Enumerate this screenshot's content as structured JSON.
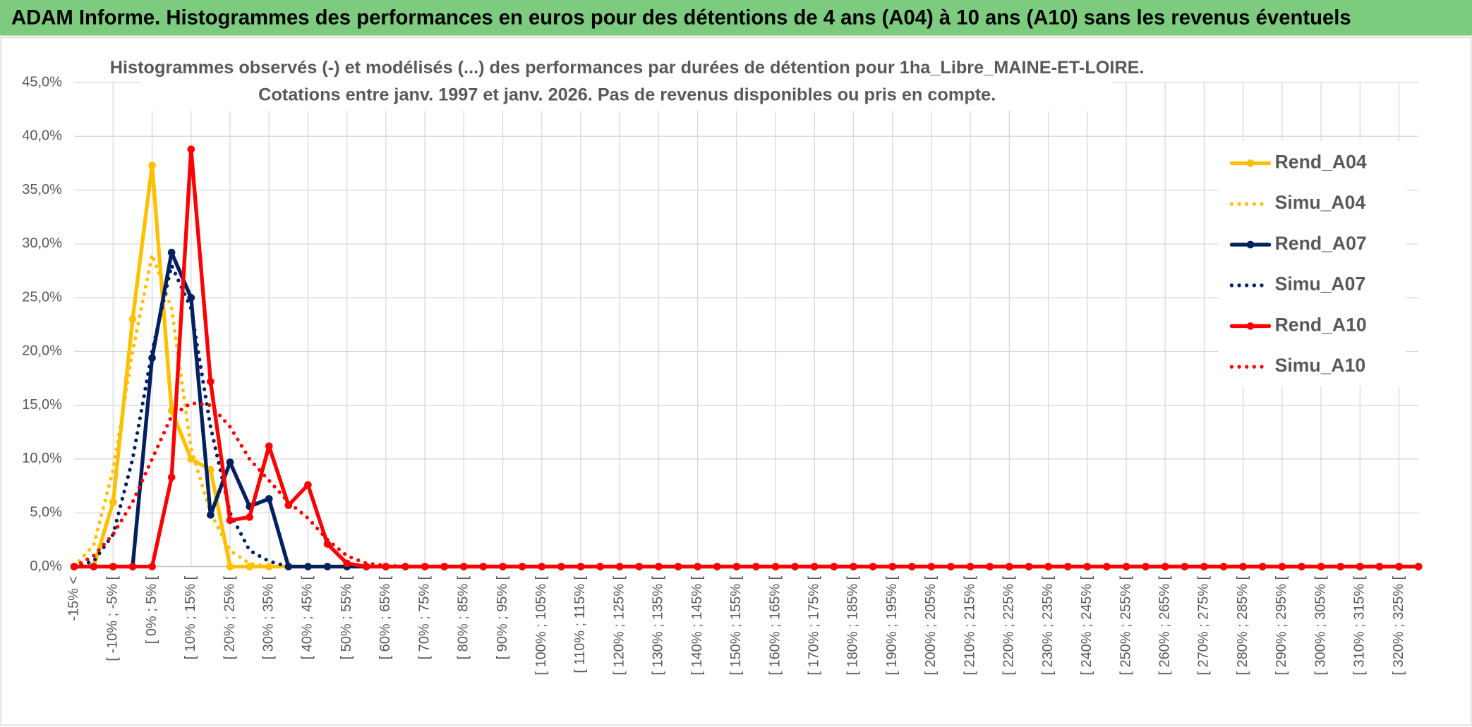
{
  "header": "ADAM Informe. Histogrammes des performances en euros pour des détentions de 4 ans (A04) à 10 ans (A10) sans les revenus éventuels",
  "chart_data": {
    "type": "line",
    "title": "Histogrammes observés (-) et modélisés (...) des performances par durées de détention pour 1ha_Libre_MAINE-ET-LOIRE.",
    "subtitle": "Cotations entre janv. 1997 et janv. 2026. Pas de revenus disponibles ou pris en compte.",
    "categories": [
      "-15% <",
      null,
      "[ -10% ; -5% [",
      null,
      "[ 0% ; 5% [",
      null,
      "[ 10% ; 15% [",
      null,
      "[ 20% ; 25% [",
      null,
      "[ 30% ; 35% [",
      null,
      "[ 40% ; 45% [",
      null,
      "[ 50% ; 55% [",
      null,
      "[ 60% ; 65% [",
      null,
      "[ 70% ; 75% [",
      null,
      "[ 80% ; 85% [",
      null,
      "[ 90% ; 95% [",
      null,
      "[ 100% ; 105% [",
      null,
      "[ 110% ; 115% [",
      null,
      "[ 120% ; 125% [",
      null,
      "[ 130% ; 135% [",
      null,
      "[ 140% ; 145% [",
      null,
      "[ 150% ; 155% [",
      null,
      "[ 160% ; 165% [",
      null,
      "[ 170% ; 175% [",
      null,
      "[ 180% ; 185% [",
      null,
      "[ 190% ; 195% [",
      null,
      "[ 200% ; 205% [",
      null,
      "[ 210% ; 215% [",
      null,
      "[ 220% ; 225% [",
      null,
      "[ 230% ; 235% [",
      null,
      "[ 240% ; 245% [",
      null,
      "[ 250% ; 255% [",
      null,
      "[ 260% ; 265% [",
      null,
      "[ 270% ; 275% [",
      null,
      "[ 280% ; 285% [",
      null,
      "[ 290% ; 295% [",
      null,
      "[ 300% ; 305% [",
      null,
      "[ 310% ; 315% [",
      null,
      "[ 320% ; 325% [",
      null
    ],
    "series": [
      {
        "name": "Rend_A04",
        "color": "#ffc000",
        "style": "solid",
        "values": [
          0,
          0,
          6,
          23,
          37.3,
          14.5,
          10,
          9,
          0,
          0,
          0,
          0,
          0,
          0,
          0,
          0,
          0,
          0,
          0,
          0,
          0,
          0,
          0,
          0,
          0,
          0,
          0,
          0,
          0,
          0,
          0,
          0,
          0,
          0,
          0,
          0,
          0,
          0,
          0,
          0,
          0,
          0,
          0,
          0,
          0,
          0,
          0,
          0,
          0,
          0,
          0,
          0,
          0,
          0,
          0,
          0,
          0,
          0,
          0,
          0,
          0,
          0,
          0,
          0,
          0,
          0,
          0,
          0,
          0,
          0
        ]
      },
      {
        "name": "Simu_A04",
        "color": "#ffc000",
        "style": "dotted",
        "values": [
          0,
          2,
          9,
          20,
          29,
          24,
          11,
          5,
          1.5,
          0.3,
          0,
          0,
          0,
          0,
          0,
          0,
          0,
          0,
          0,
          0,
          0,
          0,
          0,
          0,
          0,
          0,
          0,
          0,
          0,
          0,
          0,
          0,
          0,
          0,
          0,
          0,
          0,
          0,
          0,
          0,
          0,
          0,
          0,
          0,
          0,
          0,
          0,
          0,
          0,
          0,
          0,
          0,
          0,
          0,
          0,
          0,
          0,
          0,
          0,
          0,
          0,
          0,
          0,
          0,
          0,
          0,
          0,
          0,
          0,
          0
        ]
      },
      {
        "name": "Rend_A07",
        "color": "#002060",
        "style": "solid",
        "values": [
          0,
          0,
          0,
          0,
          19.4,
          29.2,
          25,
          4.8,
          9.7,
          5.6,
          6.3,
          0,
          0,
          0,
          0,
          0,
          0,
          0,
          0,
          0,
          0,
          0,
          0,
          0,
          0,
          0,
          0,
          0,
          0,
          0,
          0,
          0,
          0,
          0,
          0,
          0,
          0,
          0,
          0,
          0,
          0,
          0,
          0,
          0,
          0,
          0,
          0,
          0,
          0,
          0,
          0,
          0,
          0,
          0,
          0,
          0,
          0,
          0,
          0,
          0,
          0,
          0,
          0,
          0,
          0,
          0,
          0,
          0,
          0,
          0
        ]
      },
      {
        "name": "Simu_A07",
        "color": "#002060",
        "style": "dotted",
        "values": [
          0,
          0.5,
          3,
          10,
          20,
          28,
          24,
          13,
          5,
          1.5,
          0.5,
          0,
          0,
          0,
          0,
          0,
          0,
          0,
          0,
          0,
          0,
          0,
          0,
          0,
          0,
          0,
          0,
          0,
          0,
          0,
          0,
          0,
          0,
          0,
          0,
          0,
          0,
          0,
          0,
          0,
          0,
          0,
          0,
          0,
          0,
          0,
          0,
          0,
          0,
          0,
          0,
          0,
          0,
          0,
          0,
          0,
          0,
          0,
          0,
          0,
          0,
          0,
          0,
          0,
          0,
          0,
          0,
          0,
          0,
          0
        ]
      },
      {
        "name": "Rend_A10",
        "color": "#ff0000",
        "style": "solid",
        "values": [
          0,
          0,
          0,
          0,
          0,
          8.3,
          38.8,
          17.2,
          4.3,
          4.6,
          11.2,
          5.7,
          7.6,
          2.1,
          0.3,
          0,
          0,
          0,
          0,
          0,
          0,
          0,
          0,
          0,
          0,
          0,
          0,
          0,
          0,
          0,
          0,
          0,
          0,
          0,
          0,
          0,
          0,
          0,
          0,
          0,
          0,
          0,
          0,
          0,
          0,
          0,
          0,
          0,
          0,
          0,
          0,
          0,
          0,
          0,
          0,
          0,
          0,
          0,
          0,
          0,
          0,
          0,
          0,
          0,
          0,
          0,
          0,
          0,
          0,
          0
        ]
      },
      {
        "name": "Simu_A10",
        "color": "#ff0000",
        "style": "dotted",
        "values": [
          0,
          1,
          3,
          6,
          10,
          14,
          15.2,
          15,
          13,
          10,
          8,
          6,
          4.5,
          2.5,
          1,
          0.3,
          0.1,
          0,
          0,
          0,
          0,
          0,
          0,
          0,
          0,
          0,
          0,
          0,
          0,
          0,
          0,
          0,
          0,
          0,
          0,
          0,
          0,
          0,
          0,
          0,
          0,
          0,
          0,
          0,
          0,
          0,
          0,
          0,
          0,
          0,
          0,
          0,
          0,
          0,
          0,
          0,
          0,
          0,
          0,
          0,
          0,
          0,
          0,
          0,
          0,
          0,
          0,
          0,
          0,
          0
        ]
      }
    ],
    "ylim": [
      0,
      45
    ],
    "yticks": [
      {
        "value": 0,
        "label": "0,0%"
      },
      {
        "value": 5,
        "label": "5,0%"
      },
      {
        "value": 10,
        "label": "10,0%"
      },
      {
        "value": 15,
        "label": "15,0%"
      },
      {
        "value": 20,
        "label": "20,0%"
      },
      {
        "value": 25,
        "label": "25,0%"
      },
      {
        "value": 30,
        "label": "30,0%"
      },
      {
        "value": 35,
        "label": "35,0%"
      },
      {
        "value": 40,
        "label": "40,0%"
      },
      {
        "value": 45,
        "label": "45,0%"
      }
    ],
    "grid": true,
    "legend": "right"
  }
}
